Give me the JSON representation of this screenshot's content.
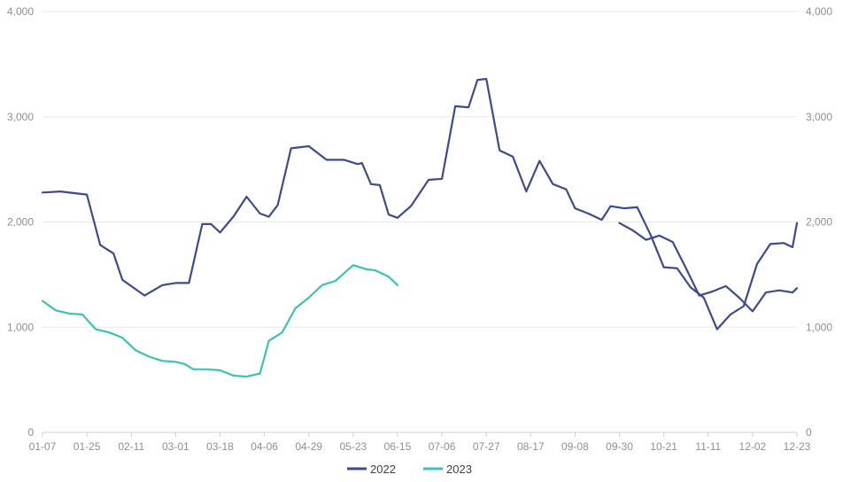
{
  "chart_data": {
    "type": "line",
    "x_tick_labels": [
      "01-07",
      "01-25",
      "02-11",
      "03-01",
      "03-18",
      "04-06",
      "04-29",
      "05-23",
      "06-15",
      "07-06",
      "07-27",
      "08-17",
      "09-08",
      "09-30",
      "10-21",
      "11-11",
      "12-02",
      "12-23"
    ],
    "y_left_ticks": [
      "0",
      "1,000",
      "2,000",
      "3,000",
      "4,000"
    ],
    "y_right_ticks": [
      "0",
      "1,000",
      "2,000",
      "3,000",
      "4,000"
    ],
    "ylim": [
      0,
      4000
    ],
    "grid": true,
    "legend_position": "bottom",
    "colors": {
      "2022": "#3f4a8a",
      "2023": "#3cc2b4",
      "grid": "#e8e8e8",
      "axis": "#d0d0d0"
    },
    "series": [
      {
        "name": "2022",
        "x": [
          0,
          0.4,
          1,
          1.3,
          1.6,
          1.8,
          2.0,
          2.3,
          2.7,
          3.0,
          3.3,
          3.6,
          3.8,
          4.0,
          4.3,
          4.6,
          4.9,
          5.1,
          5.3,
          5.6,
          6.0,
          6.4,
          6.8,
          7.1,
          7.2,
          7.4,
          7.6,
          7.8,
          8.0,
          8.3,
          8.7,
          9.0,
          9.3,
          9.6,
          9.8,
          10.0,
          10.3,
          10.6,
          10.9,
          11.2,
          11.5,
          11.8,
          12.0,
          12.3,
          12.6,
          12.8,
          13.1,
          13.4,
          13.7,
          14.0,
          14.3,
          14.6,
          14.9,
          15.2,
          15.5,
          15.8,
          16.1,
          16.4,
          16.7,
          16.9,
          17.0
        ],
        "y": [
          2280,
          2290,
          2260,
          1780,
          1700,
          1450,
          1390,
          1300,
          1400,
          1420,
          1420,
          1980,
          1980,
          1900,
          2050,
          2240,
          2080,
          2050,
          2160,
          2700,
          2720,
          2590,
          2590,
          2550,
          2560,
          2360,
          2350,
          2070,
          2040,
          2150,
          2400,
          2410,
          3100,
          3090,
          3350,
          3360,
          2680,
          2620,
          2290,
          2580,
          2360,
          2310,
          2130,
          2080,
          2020,
          2150,
          2130,
          2140,
          1880,
          1570,
          1560,
          1380,
          1280,
          980,
          1120,
          1200,
          1600,
          1790,
          1800,
          1760,
          1990
        ],
        "x2": [
          13.0,
          13.3,
          13.6,
          13.9,
          14.2,
          14.5,
          14.8,
          15.1,
          15.4,
          15.7,
          16.0,
          16.3,
          16.6,
          16.9,
          17.0
        ],
        "y2": [
          1990,
          1920,
          1830,
          1870,
          1810,
          1560,
          1300,
          1340,
          1390,
          1280,
          1150,
          1330,
          1350,
          1330,
          1370
        ]
      },
      {
        "name": "2023",
        "x": [
          0,
          0.3,
          0.6,
          0.9,
          1.2,
          1.5,
          1.8,
          2.1,
          2.4,
          2.7,
          3.0,
          3.2,
          3.4,
          3.7,
          4.0,
          4.3,
          4.6,
          4.9,
          5.1,
          5.4,
          5.7,
          6.0,
          6.3,
          6.6,
          7.0,
          7.3,
          7.5,
          7.8,
          8.0
        ],
        "y": [
          1250,
          1160,
          1130,
          1120,
          980,
          950,
          900,
          780,
          720,
          680,
          670,
          650,
          600,
          600,
          590,
          540,
          530,
          560,
          870,
          950,
          1180,
          1280,
          1400,
          1440,
          1590,
          1550,
          1540,
          1480,
          1400
        ]
      }
    ]
  }
}
